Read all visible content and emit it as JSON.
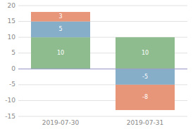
{
  "chart_data": {
    "type": "bar",
    "stacked": true,
    "data_labels": true,
    "grid": true,
    "categories": [
      "2019-07-30",
      "2019-07-31"
    ],
    "series": [
      {
        "color": "#8fbc8f",
        "values": [
          10,
          10
        ]
      },
      {
        "color": "#87aec8",
        "values": [
          5,
          -5
        ]
      },
      {
        "color": "#e8967a",
        "values": [
          3,
          -8
        ]
      }
    ],
    "ylim": [
      -15,
      20
    ],
    "yticks": [
      -15,
      -10,
      -5,
      0,
      5,
      10,
      15,
      20
    ]
  }
}
